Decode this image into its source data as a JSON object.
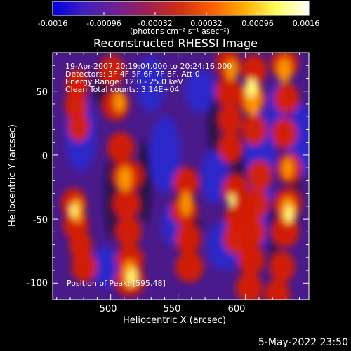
{
  "colorbar": {
    "ticks": [
      "-0.0016",
      "-0.00096",
      "-0.00032",
      "0.00032",
      "0.00096",
      "0.0016"
    ],
    "units": "(photons cm⁻² s⁻¹ asec⁻²)",
    "colors": [
      "#0000e0",
      "#4020c0",
      "#702090",
      "#a02050",
      "#d03010",
      "#ff6000",
      "#ffb000",
      "#ffff60",
      "#ffffff"
    ]
  },
  "title": "Reconstructed RHESSI Image",
  "info": {
    "time": "19-Apr-2007 20:19:04.000 to 20:24:16.000",
    "detectors": "Detectors: 3F 4F 5F 6F 7F 8F, Att 0",
    "energy": "Energy Range: 12.0 - 25.0 keV",
    "clean": "Clean     Total counts: 3.14E+04"
  },
  "position_note": "Position of Peak: [595,48]",
  "x_axis": {
    "label": "Heliocentric X (arcsec)",
    "ticks": [
      "500",
      "550",
      "600"
    ],
    "range": [
      457,
      647
    ]
  },
  "y_axis": {
    "label": "Heliocentric Y (arcsec)",
    "ticks": [
      "50",
      "0",
      "-50",
      "-100"
    ],
    "range": [
      -113,
      80
    ]
  },
  "timestamp": "5-May-2022 23:50"
}
